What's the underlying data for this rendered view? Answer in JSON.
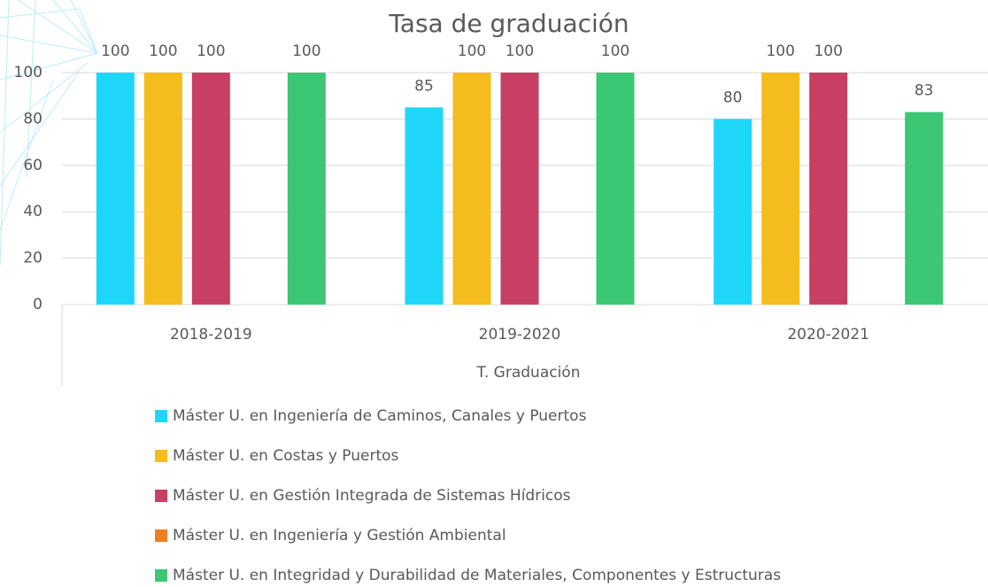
{
  "chart_data": {
    "type": "bar",
    "title": "Tasa de graduación",
    "x_label": "T. Graduación",
    "categories": [
      "2018-2019",
      "2019-2020",
      "2020-2021"
    ],
    "series": [
      {
        "name": "Máster U. en Ingeniería de Caminos, Canales y Puertos",
        "color": "#1ed7f8",
        "values": [
          100,
          85,
          80
        ]
      },
      {
        "name": "Máster U. en Costas y Puertos",
        "color": "#f4bc1c",
        "values": [
          100,
          100,
          100
        ]
      },
      {
        "name": "Máster U. en Gestión Integrada de Sistemas Hídricos",
        "color": "#c73f63",
        "values": [
          100,
          100,
          100
        ]
      },
      {
        "name": "Máster U. en Ingeniería y Gestión Ambiental",
        "color": "#f07f22",
        "values": [
          null,
          null,
          null
        ]
      },
      {
        "name": "Máster U. en Integridad y Durabilidad de Materiales, Componentes y Estructuras",
        "color": "#3cc774",
        "values": [
          100,
          100,
          83
        ]
      }
    ],
    "ylim": [
      0,
      100
    ],
    "yticks": [
      0,
      20,
      40,
      60,
      80,
      100
    ],
    "grid": true,
    "legend": "bottom"
  }
}
